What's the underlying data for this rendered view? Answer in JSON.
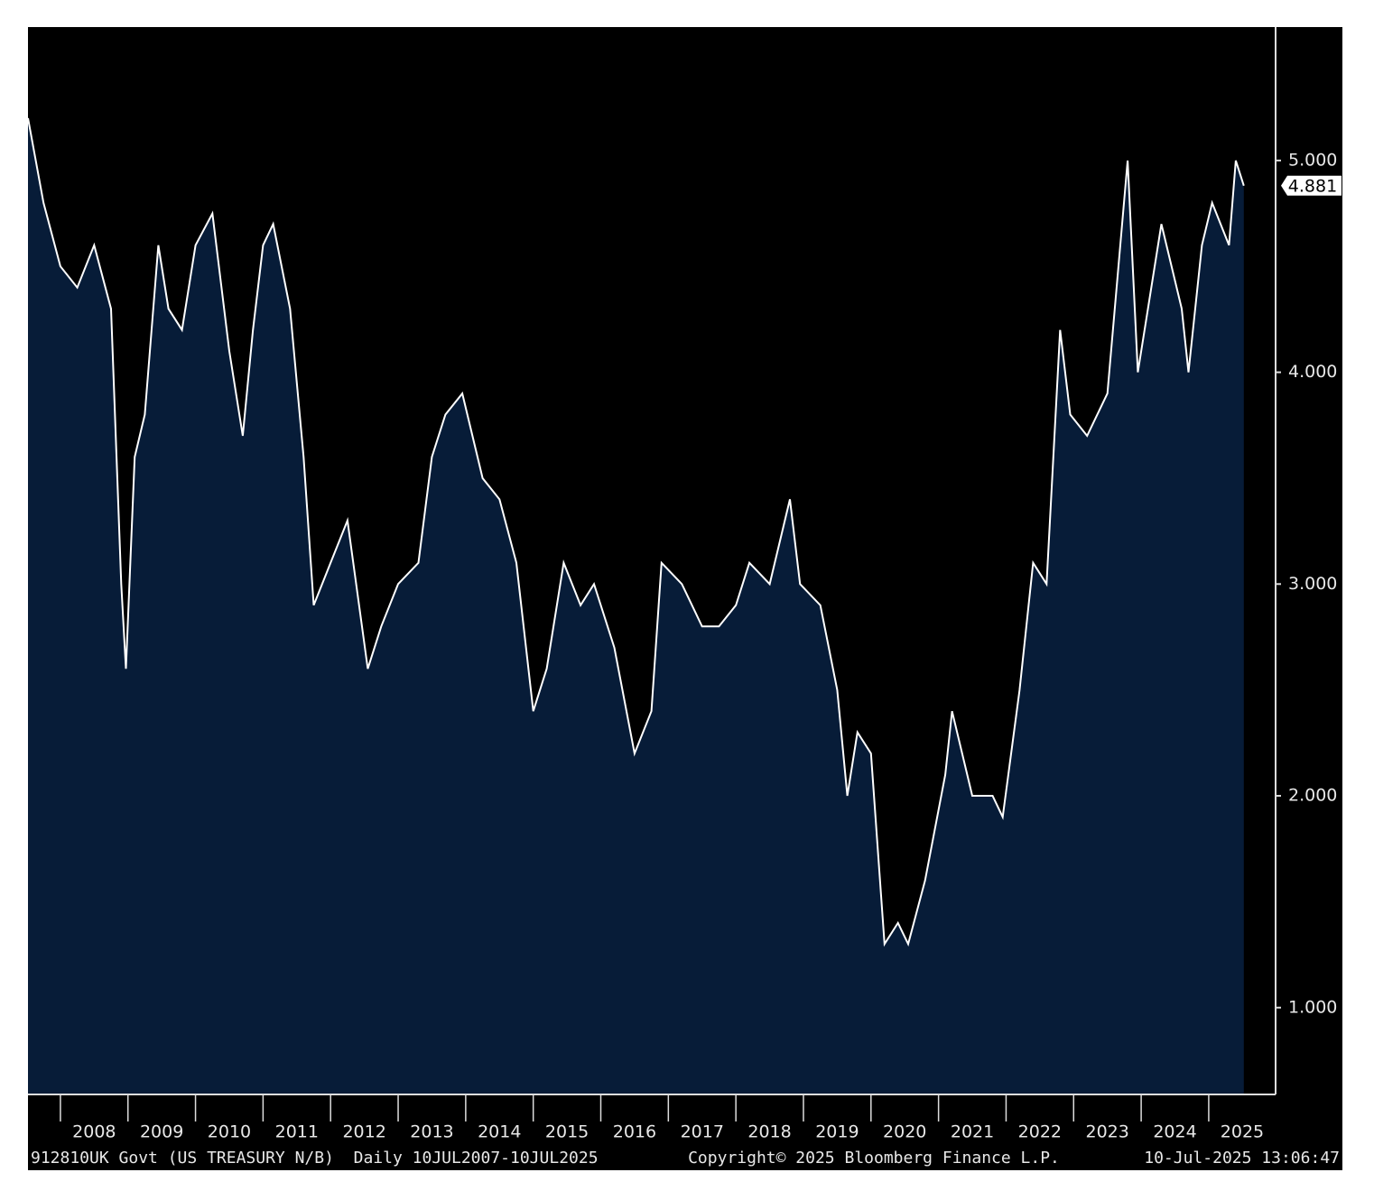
{
  "chart_data": {
    "type": "area",
    "x": [
      2007.52,
      2007.75,
      2008.0,
      2008.25,
      2008.5,
      2008.75,
      2008.9,
      2008.97,
      2009.1,
      2009.25,
      2009.45,
      2009.6,
      2009.8,
      2010.0,
      2010.25,
      2010.5,
      2010.7,
      2010.85,
      2011.0,
      2011.15,
      2011.4,
      2011.6,
      2011.75,
      2012.0,
      2012.25,
      2012.55,
      2012.75,
      2013.0,
      2013.3,
      2013.5,
      2013.7,
      2013.95,
      2014.25,
      2014.5,
      2014.75,
      2015.0,
      2015.2,
      2015.45,
      2015.7,
      2015.9,
      2016.2,
      2016.5,
      2016.75,
      2016.9,
      2017.2,
      2017.5,
      2017.75,
      2018.0,
      2018.2,
      2018.5,
      2018.8,
      2018.95,
      2019.25,
      2019.5,
      2019.65,
      2019.8,
      2020.0,
      2020.2,
      2020.4,
      2020.55,
      2020.8,
      2021.1,
      2021.2,
      2021.5,
      2021.8,
      2021.95,
      2022.2,
      2022.4,
      2022.6,
      2022.8,
      2022.95,
      2023.2,
      2023.5,
      2023.8,
      2023.95,
      2024.1,
      2024.3,
      2024.6,
      2024.7,
      2024.9,
      2025.05,
      2025.3,
      2025.4,
      2025.52
    ],
    "series": [
      {
        "name": "912810UK Govt",
        "color": "#ffffff",
        "fill": "#071c38",
        "values": [
          5.2,
          4.8,
          4.5,
          4.4,
          4.6,
          4.3,
          3.0,
          2.6,
          3.6,
          3.8,
          4.6,
          4.3,
          4.2,
          4.6,
          4.75,
          4.1,
          3.7,
          4.2,
          4.6,
          4.7,
          4.3,
          3.6,
          2.9,
          3.1,
          3.3,
          2.6,
          2.8,
          3.0,
          3.1,
          3.6,
          3.8,
          3.9,
          3.5,
          3.4,
          3.1,
          2.4,
          2.6,
          3.1,
          2.9,
          3.0,
          2.7,
          2.2,
          2.4,
          3.1,
          3.0,
          2.8,
          2.8,
          2.9,
          3.1,
          3.0,
          3.4,
          3.0,
          2.9,
          2.5,
          2.0,
          2.3,
          2.2,
          1.3,
          1.4,
          1.3,
          1.6,
          2.1,
          2.4,
          2.0,
          2.0,
          1.9,
          2.5,
          3.1,
          3.0,
          4.2,
          3.8,
          3.7,
          3.9,
          5.0,
          4.0,
          4.3,
          4.7,
          4.3,
          4.0,
          4.6,
          4.8,
          4.6,
          5.0,
          4.881
        ]
      }
    ],
    "last_value_label": "4.881",
    "xlim": [
      2007.52,
      2025.99
    ],
    "xticks": [
      2008,
      2009,
      2010,
      2011,
      2012,
      2013,
      2014,
      2015,
      2016,
      2017,
      2018,
      2019,
      2020,
      2021,
      2022,
      2023,
      2024,
      2025
    ],
    "ylim": [
      0.59,
      5.63
    ],
    "yticks": [
      {
        "value": 1,
        "label": "1.000"
      },
      {
        "value": 2,
        "label": "2.000"
      },
      {
        "value": 3,
        "label": "3.000"
      },
      {
        "value": 4,
        "label": "4.000"
      },
      {
        "value": 5,
        "label": "5.000"
      }
    ],
    "footer_left": "912810UK Govt (US TREASURY N/B)  Daily 10JUL2007-10JUL2025",
    "footer_center": "Copyright© 2025 Bloomberg Finance L.P.",
    "footer_right": "10-Jul-2025 13:06:47"
  }
}
